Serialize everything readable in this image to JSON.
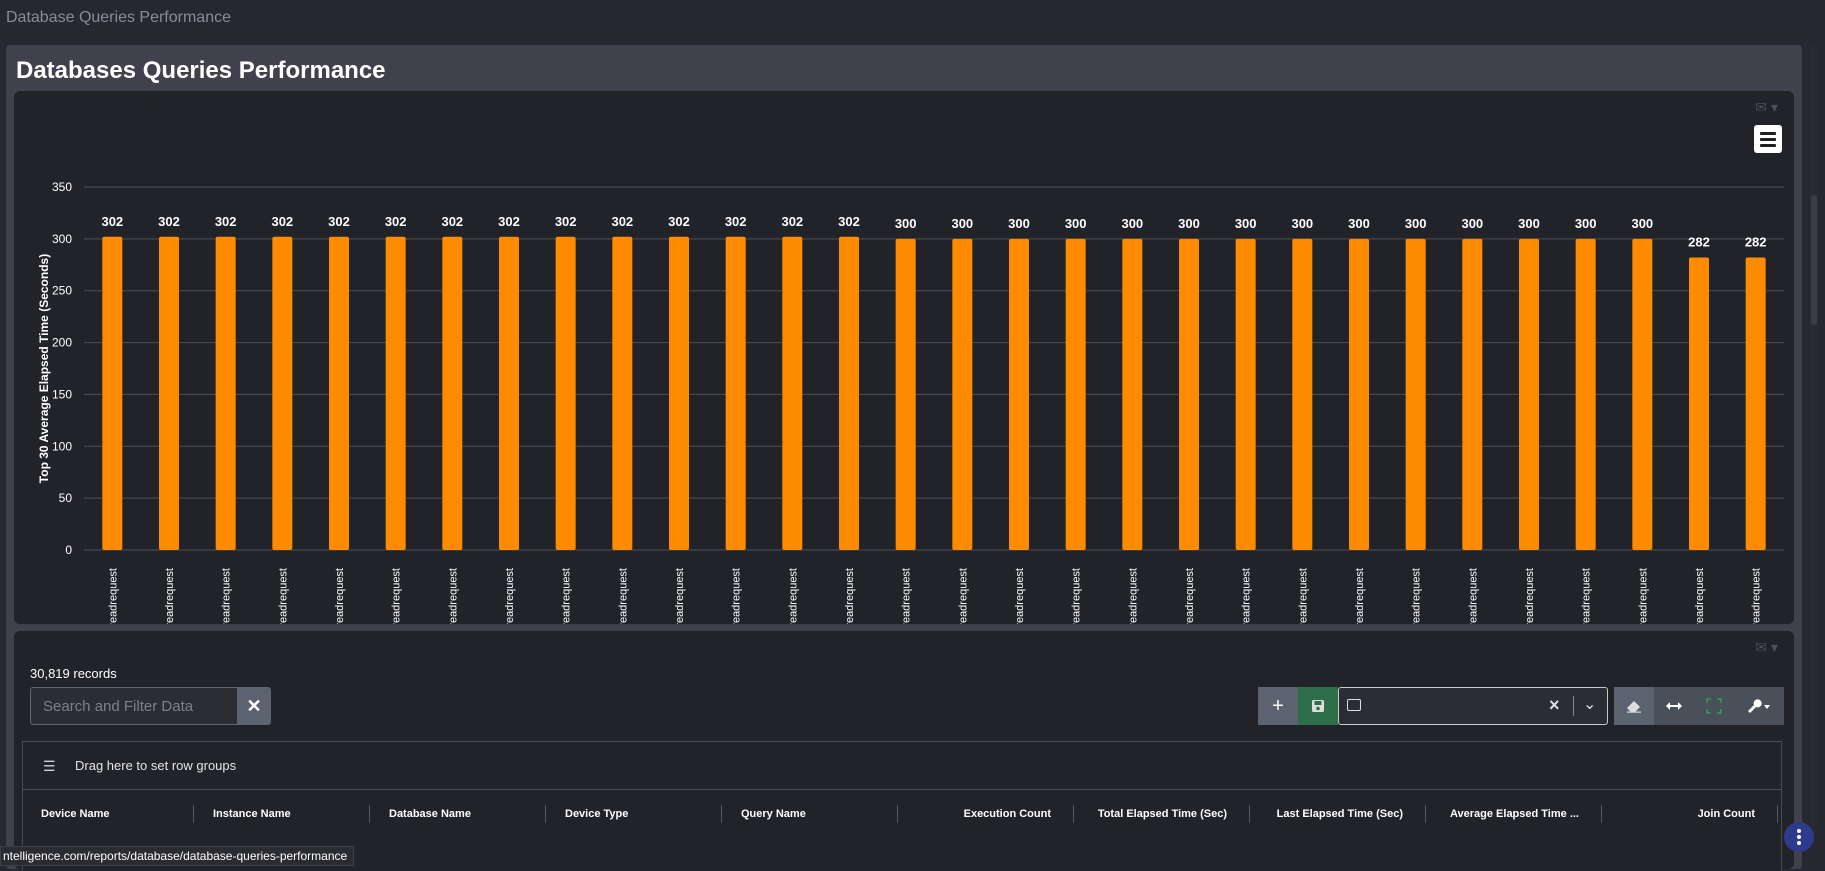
{
  "window": {
    "title": "Database Queries Performance"
  },
  "page": {
    "title": "Databases Queries Performance"
  },
  "chart_panel": {
    "mail_icon": "envelope-icon",
    "dropdown_icon": "caret-down-icon",
    "menu_icon": "hamburger-icon"
  },
  "chart_data": {
    "type": "bar",
    "ylabel": "Top 30 Average Elapsed Time (Seconds)",
    "xlabel": "",
    "ylim": [
      0,
      350
    ],
    "yticks": [
      0,
      50,
      100,
      150,
      200,
      250,
      300,
      350
    ],
    "grid": true,
    "bar_color": "#ff8c00",
    "categories": [
      "sp_readrequest",
      "sp_readrequest",
      "sp_readrequest",
      "sp_readrequest",
      "sp_readrequest",
      "sp_readrequest",
      "sp_readrequest",
      "sp_readrequest",
      "sp_readrequest",
      "sp_readrequest",
      "sp_readrequest",
      "sp_readrequest",
      "sp_readrequest",
      "sp_readrequest",
      "sp_readrequest",
      "sp_readrequest",
      "sp_readrequest",
      "sp_readrequest",
      "sp_readrequest",
      "sp_readrequest",
      "sp_readrequest",
      "sp_readrequest",
      "sp_readrequest",
      "sp_readrequest",
      "sp_readrequest",
      "sp_readrequest",
      "sp_readrequest",
      "sp_readrequest",
      "sp_readrequest",
      "sp_readrequest"
    ],
    "values": [
      302,
      302,
      302,
      302,
      302,
      302,
      302,
      302,
      302,
      302,
      302,
      302,
      302,
      302,
      300,
      300,
      300,
      300,
      300,
      300,
      300,
      300,
      300,
      300,
      300,
      300,
      300,
      300,
      282,
      282
    ],
    "data_labels": true
  },
  "table_panel": {
    "records": "30,819 records",
    "search": {
      "placeholder": "Search and Filter Data",
      "value": ""
    },
    "buttons": {
      "add": "+",
      "save_icon": "floppy-icon",
      "clear": "✕",
      "eraser_icon": "eraser-icon",
      "fit_icon": "arrows-horizontal-icon",
      "expand_icon": "expand-icon",
      "settings_icon": "wrench-icon"
    },
    "view_select": {
      "value": ""
    },
    "row_groups": {
      "hint": "Drag here to set row groups"
    },
    "columns": [
      "Device Name",
      "Instance Name",
      "Database Name",
      "Device Type",
      "Query Name",
      "Execution Count",
      "Total Elapsed Time (Sec)",
      "Last Elapsed Time (Sec)",
      "Average Elapsed Time ...",
      "Join Count"
    ]
  },
  "statusbar": {
    "url": "ntelligence.com/reports/database/database-queries-performance"
  }
}
